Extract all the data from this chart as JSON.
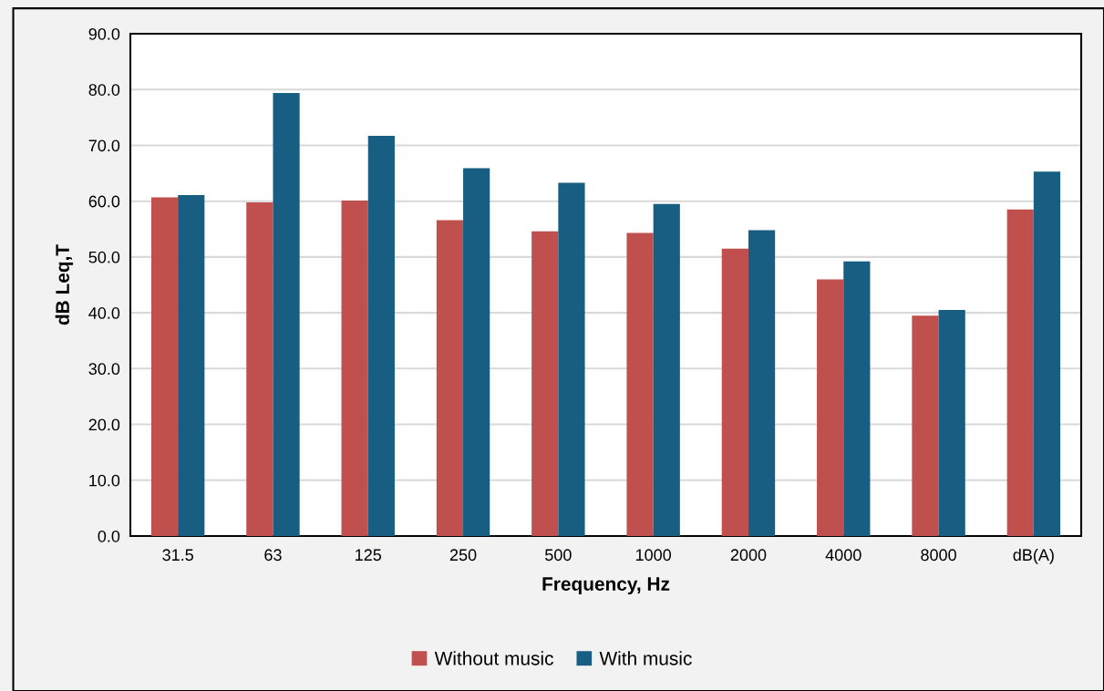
{
  "chart_data": {
    "type": "bar",
    "xlabel": "Frequency, Hz",
    "ylabel": "dB Leq,T",
    "categories": [
      "31.5",
      "63",
      "125",
      "250",
      "500",
      "1000",
      "2000",
      "4000",
      "8000",
      "dB(A)"
    ],
    "series": [
      {
        "name": "Without music",
        "color": "#c0504d",
        "values": [
          60.7,
          59.8,
          60.1,
          56.6,
          54.6,
          54.3,
          51.5,
          46.0,
          39.5,
          58.5
        ]
      },
      {
        "name": "With music",
        "color": "#175e82",
        "values": [
          61.1,
          79.4,
          71.7,
          65.9,
          63.3,
          59.5,
          54.8,
          49.2,
          40.5,
          65.3
        ]
      }
    ],
    "ylim": [
      0,
      90
    ],
    "yticks": [
      {
        "value": 0,
        "label": "0.0"
      },
      {
        "value": 10,
        "label": "10.0"
      },
      {
        "value": 20,
        "label": "20.0"
      },
      {
        "value": 30,
        "label": "30.0"
      },
      {
        "value": 40,
        "label": "40.0"
      },
      {
        "value": 50,
        "label": "50.0"
      },
      {
        "value": 60,
        "label": "60.0"
      },
      {
        "value": 70,
        "label": "70.0"
      },
      {
        "value": 80,
        "label": "80.0"
      },
      {
        "value": 90,
        "label": "90.0"
      }
    ],
    "grid": "y",
    "legend": "bottom"
  }
}
